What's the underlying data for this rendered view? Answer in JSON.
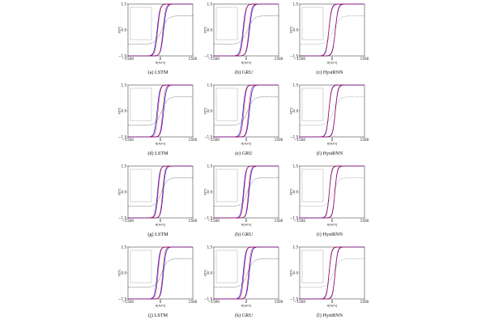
{
  "figure": {
    "axes_common": {
      "ylabel": "B[T]",
      "xlabel": "H[A/m]",
      "xticks": [
        "−1500",
        "0",
        "1500"
      ],
      "yticks": [
        "1.5",
        "0.0",
        "−1.5"
      ],
      "xlim": [
        -1500,
        1500
      ],
      "ylim": [
        -1.5,
        1.5
      ],
      "colors": {
        "reference": "#1a1aff",
        "prediction": "#e00000",
        "history": "#111111"
      }
    },
    "panels": [
      {
        "label": "(a)",
        "model": "LSTM"
      },
      {
        "label": "(b)",
        "model": "GRU"
      },
      {
        "label": "(c)",
        "model": "HystRNN"
      },
      {
        "label": "(d)",
        "model": "LSTM"
      },
      {
        "label": "(e)",
        "model": "GRU"
      },
      {
        "label": "(f)",
        "model": "HystRNN"
      },
      {
        "label": "(g)",
        "model": "LSTM"
      },
      {
        "label": "(h)",
        "model": "GRU"
      },
      {
        "label": "(i)",
        "model": "HystRNN"
      },
      {
        "label": "(j)",
        "model": "LSTM"
      },
      {
        "label": "(k)",
        "model": "GRU"
      },
      {
        "label": "(l)",
        "model": "HystRNN"
      }
    ]
  }
}
